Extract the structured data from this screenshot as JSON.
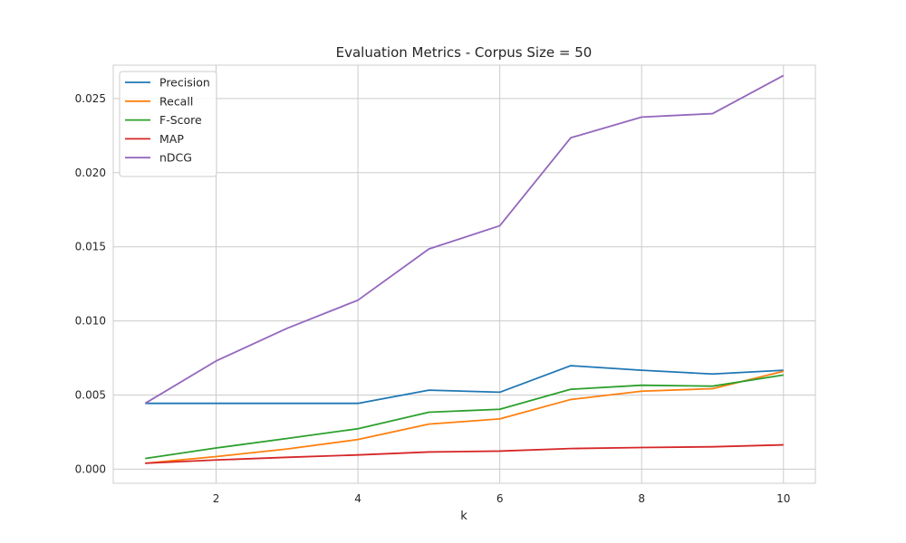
{
  "chart_data": {
    "type": "line",
    "title": "Evaluation Metrics - Corpus Size = 50",
    "xlabel": "k",
    "ylabel": "",
    "x": [
      1,
      2,
      3,
      4,
      5,
      6,
      7,
      8,
      9,
      10
    ],
    "xlim": [
      0.55,
      10.45
    ],
    "ylim": [
      -0.00095,
      0.02725
    ],
    "xticks": [
      2,
      4,
      6,
      8,
      10
    ],
    "xtick_labels": [
      "2",
      "4",
      "6",
      "8",
      "10"
    ],
    "yticks": [
      0.0,
      0.005,
      0.01,
      0.015,
      0.02,
      0.025
    ],
    "ytick_labels": [
      "0.000",
      "0.005",
      "0.010",
      "0.015",
      "0.020",
      "0.025"
    ],
    "grid": true,
    "legend_position": "top-left",
    "series": [
      {
        "name": "Precision",
        "color": "#1f77b4",
        "values": [
          0.00444,
          0.00444,
          0.00444,
          0.00444,
          0.00533,
          0.00519,
          0.00698,
          0.00667,
          0.00642,
          0.00667
        ]
      },
      {
        "name": "Recall",
        "color": "#ff7f0e",
        "values": [
          0.0004,
          0.00085,
          0.00136,
          0.002,
          0.00304,
          0.00339,
          0.0047,
          0.00526,
          0.00543,
          0.0066
        ]
      },
      {
        "name": "F-Score",
        "color": "#2ca02c",
        "values": [
          0.00072,
          0.00143,
          0.00207,
          0.00273,
          0.00384,
          0.00404,
          0.00539,
          0.00566,
          0.0056,
          0.00635
        ]
      },
      {
        "name": "MAP",
        "color": "#d62728",
        "values": [
          0.0004,
          0.00062,
          0.0008,
          0.00096,
          0.00116,
          0.00122,
          0.00139,
          0.00146,
          0.00151,
          0.00164
        ]
      },
      {
        "name": "nDCG",
        "color": "#9467bd",
        "values": [
          0.00444,
          0.0073,
          0.0095,
          0.0114,
          0.01485,
          0.01642,
          0.02235,
          0.02375,
          0.02398,
          0.02655
        ]
      }
    ]
  }
}
